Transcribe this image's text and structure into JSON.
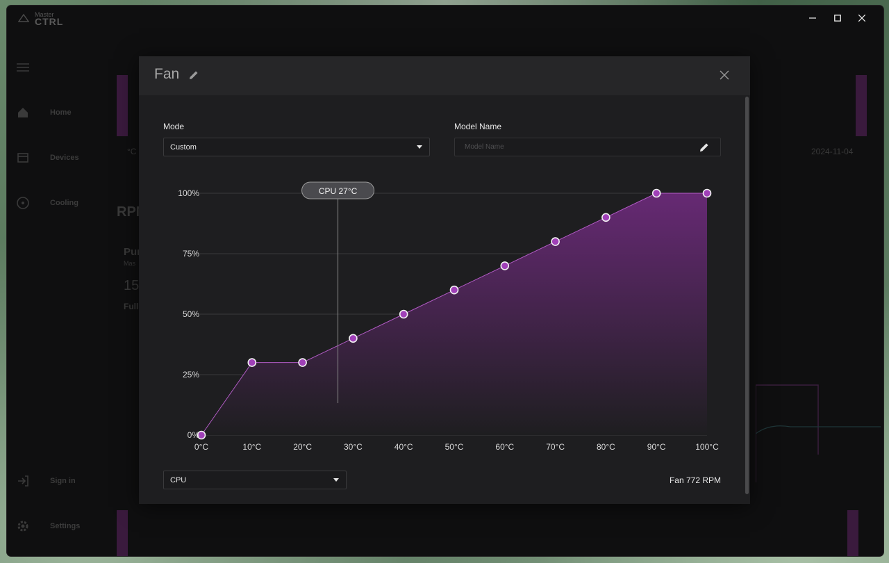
{
  "app": {
    "logo_small": "Master",
    "logo_big": "CTRL"
  },
  "sidebar": {
    "items": [
      {
        "label": "",
        "icon": "menu-icon"
      },
      {
        "label": "Home",
        "icon": "home-icon"
      },
      {
        "label": "Devices",
        "icon": "devices-icon"
      },
      {
        "label": "Cooling",
        "icon": "fan-icon"
      },
      {
        "label": "Sign in",
        "icon": "sign-in-icon"
      },
      {
        "label": "Settings",
        "icon": "gear-icon"
      }
    ]
  },
  "background": {
    "date": "2024-11-04",
    "rpm_label": "RPM",
    "card_title": "Pur",
    "card_sub": "Mas",
    "card_value": "15",
    "card_footer": "Full",
    "unit_hint": "°C"
  },
  "modal": {
    "title": "Fan",
    "mode_label": "Mode",
    "mode_value": "Custom",
    "model_name_label": "Model Name",
    "model_name_value": "",
    "model_name_placeholder": "Model Name",
    "sensor_value": "CPU",
    "fan_readout": "Fan 772 RPM",
    "colors": {
      "accent": "#b15bc4",
      "point_fill": "#a040b8",
      "area_top": "#6a2a78",
      "area_bottom": "#1e1e20"
    }
  },
  "chart_data": {
    "type": "area",
    "x": [
      0,
      10,
      20,
      30,
      40,
      50,
      60,
      70,
      80,
      90,
      100
    ],
    "x_tick_labels": [
      "0°C",
      "10°C",
      "20°C",
      "30°C",
      "40°C",
      "50°C",
      "60°C",
      "70°C",
      "80°C",
      "90°C",
      "100°C"
    ],
    "y_tick_labels": [
      "0%",
      "25%",
      "50%",
      "75%",
      "100%"
    ],
    "y_ticks": [
      0,
      25,
      50,
      75,
      100
    ],
    "series": [
      {
        "values": [
          0,
          30,
          30,
          40,
          50,
          60,
          70,
          80,
          90,
          100,
          100
        ]
      }
    ],
    "xlim": [
      0,
      100
    ],
    "ylim": [
      0,
      100
    ],
    "grid": true,
    "indicator": {
      "x": 27,
      "label": "CPU 27°C"
    }
  }
}
